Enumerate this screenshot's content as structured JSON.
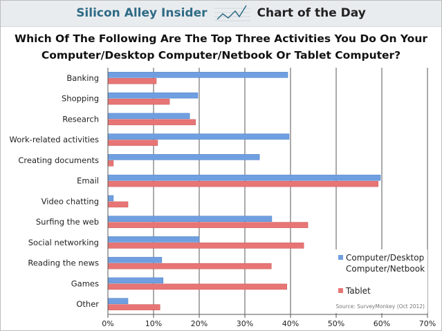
{
  "header": {
    "brand": "Silicon Alley Insider",
    "tagline": "Chart of the Day"
  },
  "chart_data": {
    "type": "bar",
    "orientation": "horizontal",
    "title": "Which Of The Following Are The Top Three Activities You Do On Your Computer/Desktop Computer/Netbook Or Tablet Computer?",
    "title_lines": [
      "Which Of The Following Are The Top Three Activities You Do On Your",
      "Computer/Desktop Computer/Netbook Or Tablet Computer?"
    ],
    "categories": [
      "Banking",
      "Shopping",
      "Research",
      "Work-related activities",
      "Creating documents",
      "Email",
      "Video chatting",
      "Surfing the web",
      "Social networking",
      "Reading the news",
      "Games",
      "Other"
    ],
    "series": [
      {
        "name": "Computer/Desktop Computer/Netbook",
        "name_lines": [
          "Computer/Desktop",
          "Computer/Netbook"
        ],
        "color": "#6f9fe0",
        "values": [
          39.4,
          19.7,
          17.9,
          39.7,
          33.2,
          59.7,
          1.2,
          35.9,
          20.0,
          11.8,
          12.1,
          4.4
        ]
      },
      {
        "name": "Tablet",
        "name_lines": [
          "Tablet"
        ],
        "color": "#e87575",
        "values": [
          10.6,
          13.5,
          19.2,
          10.9,
          1.2,
          59.2,
          4.4,
          43.8,
          42.9,
          35.8,
          39.2,
          11.4
        ]
      }
    ],
    "xlim": [
      0,
      70
    ],
    "xticks": [
      "0%",
      "10%",
      "20%",
      "30%",
      "40%",
      "50%",
      "60%",
      "70%"
    ],
    "grid": true,
    "legend": "bottom-right",
    "source": "Source: SurveyMonkey (Oct 2012)"
  }
}
